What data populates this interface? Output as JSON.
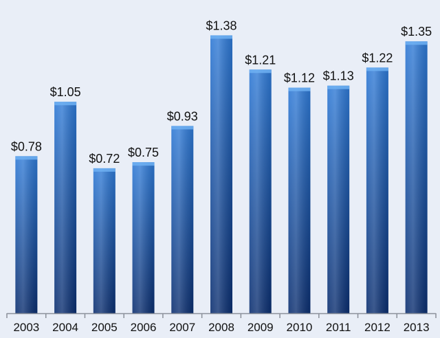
{
  "chart_data": {
    "type": "bar",
    "title": "",
    "xlabel": "",
    "ylabel": "",
    "categories": [
      "2003",
      "2004",
      "2005",
      "2006",
      "2007",
      "2008",
      "2009",
      "2010",
      "2011",
      "2012",
      "2013"
    ],
    "values": [
      0.78,
      1.05,
      0.72,
      0.75,
      0.93,
      1.38,
      1.21,
      1.12,
      1.13,
      1.22,
      1.35
    ],
    "data_labels": [
      "$0.78",
      "$1.05",
      "$0.72",
      "$0.75",
      "$0.93",
      "$1.38",
      "$1.21",
      "$1.12",
      "$1.13",
      "$1.22",
      "$1.35"
    ],
    "ylim": [
      0,
      1.46
    ],
    "grid": false,
    "legend": "none",
    "colors": {
      "bar_top": "#2f7ad6",
      "bar_bottom": "#0b2e6f",
      "background": "#e9eef7",
      "axis": "#8a8f99"
    }
  }
}
